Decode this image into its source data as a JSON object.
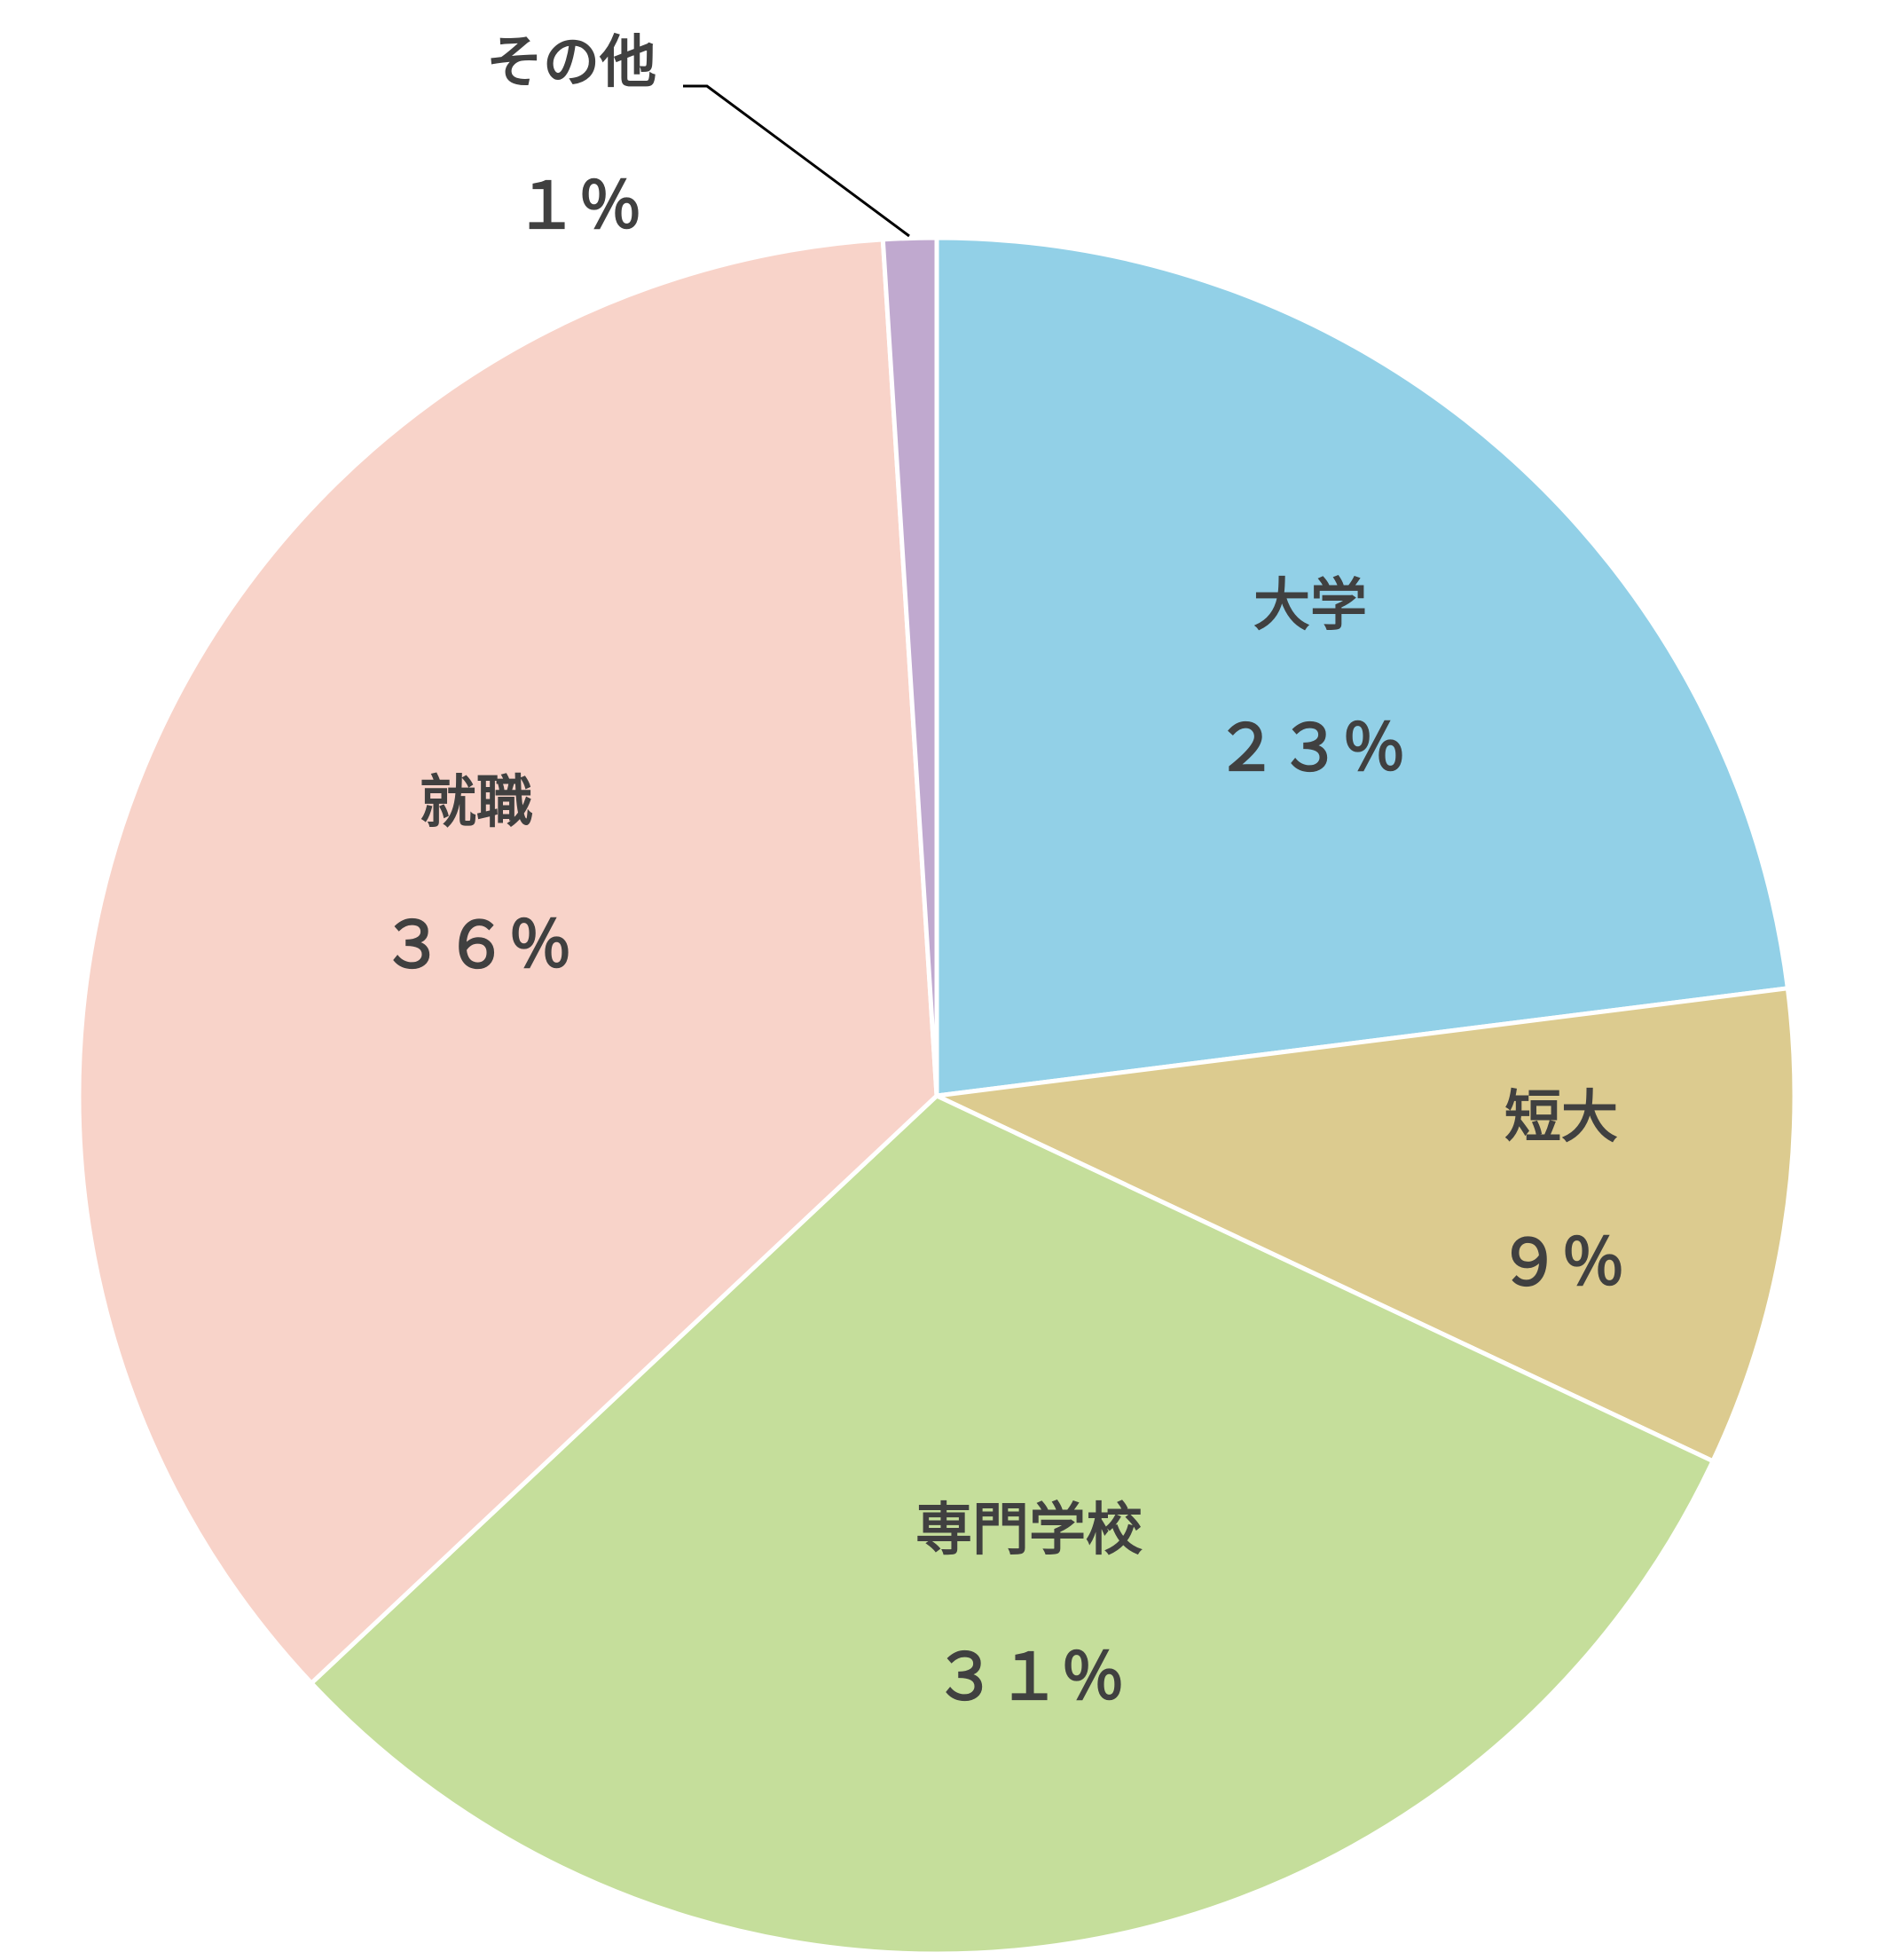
{
  "chart_data": {
    "type": "pie",
    "title": "",
    "legend": "none",
    "start": "top",
    "direction": "clockwise",
    "slices": [
      {
        "name": "大学",
        "label": "２３％",
        "value": 23,
        "color": "#92d0e7"
      },
      {
        "name": "短大",
        "label": "９％",
        "value": 9,
        "color": "#dccb8f"
      },
      {
        "name": "専門学校",
        "label": "３１％",
        "value": 31,
        "color": "#c5de9b"
      },
      {
        "name": "就職",
        "label": "３６％",
        "value": 36,
        "color": "#f8d3c9"
      },
      {
        "name": "その他",
        "label": "１％",
        "value": 1,
        "color": "#c0a9cf"
      }
    ]
  }
}
